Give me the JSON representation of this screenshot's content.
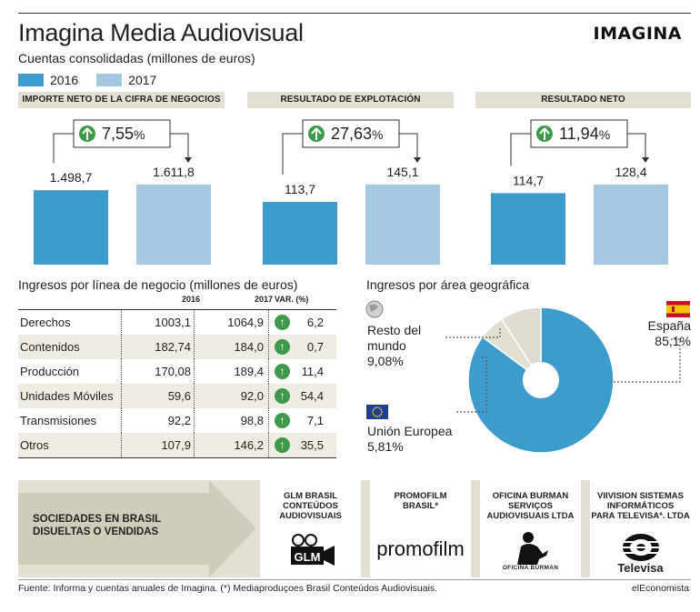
{
  "header": {
    "title": "Imagina Media Audiovisual",
    "subtitle": "Cuentas consolidadas (millones de euros)",
    "brand": "IMAGINA"
  },
  "legend": [
    {
      "label": "2016",
      "color": "#3d9ccb"
    },
    {
      "label": "2017",
      "color": "#a4c8df"
    }
  ],
  "chart_data": [
    {
      "type": "bar",
      "title": "IMPORTE NETO DE LA CIFRA DE NEGOCIOS",
      "categories": [
        "2016",
        "2017"
      ],
      "values": [
        1498.7,
        1611.8
      ],
      "value_labels": [
        "1.498,7",
        "1.611,8"
      ],
      "change_label": "7,55",
      "change_unit": "%"
    },
    {
      "type": "bar",
      "title": "RESULTADO DE EXPLOTACIÓN",
      "categories": [
        "2016",
        "2017"
      ],
      "values": [
        113.7,
        145.1
      ],
      "value_labels": [
        "113,7",
        "145,1"
      ],
      "change_label": "27,63",
      "change_unit": "%"
    },
    {
      "type": "bar",
      "title": "RESULTADO NETO",
      "categories": [
        "2016",
        "2017"
      ],
      "values": [
        114.7,
        128.4
      ],
      "value_labels": [
        "114,7",
        "128,4"
      ],
      "change_label": "11,94",
      "change_unit": "%"
    },
    {
      "type": "table",
      "title": "Ingresos por línea de negocio (millones de euros)",
      "columns": [
        "",
        "2016",
        "2017",
        "VAR. (%)"
      ],
      "rows": [
        [
          "Derechos",
          "1003,1",
          "1064,9",
          "6,2"
        ],
        [
          "Contenidos",
          "182,74",
          "184,0",
          "0,7"
        ],
        [
          "Producción",
          "170,08",
          "189,4",
          "11,4"
        ],
        [
          "Unidades Móviles",
          "59,6",
          "92,0",
          "54,4"
        ],
        [
          "Transmisiones",
          "92,2",
          "98,8",
          "7,1"
        ],
        [
          "Otros",
          "107,9",
          "146,2",
          "35,5"
        ]
      ]
    },
    {
      "type": "pie",
      "title": "Ingresos por área geográfica",
      "slices": [
        {
          "label": "España",
          "value": 85.1,
          "value_label": "85,1%",
          "color": "#3d9ccb"
        },
        {
          "label": "Unión Europea",
          "value": 5.81,
          "value_label": "5,81%",
          "color": "#e3e0d3"
        },
        {
          "label": "Resto del mundo",
          "value": 9.08,
          "value_label": "9,08%",
          "color": "#dedbd0"
        }
      ]
    }
  ],
  "geo_labels": {
    "resto_l1": "Resto del",
    "resto_l2": "mundo",
    "ue": "Unión Europea"
  },
  "companies": {
    "band_label_l1": "SOCIEDADES EN BRASIL",
    "band_label_l2": "DISUELTAS O VENDIDAS",
    "items": [
      {
        "name_l1": "GLM BRASIL",
        "name_l2": "CONTEÚDOS",
        "name_l3": "AUDIOVISUAIS",
        "logo_text": "GLM"
      },
      {
        "name_l1": "PROMOFILM",
        "name_l2": "BRASIL*",
        "name_l3": "",
        "logo_text": "promofilm"
      },
      {
        "name_l1": "OFICINA BURMAN",
        "name_l2": "SERVIÇOS",
        "name_l3": "AUDIOVISUAIS LTDA",
        "logo_text": "OFICINA BURMAN"
      },
      {
        "name_l1": "VIIVISION SISTEMAS",
        "name_l2": "INFORMÁTICOS",
        "name_l3": "PARA TELEVISAª. LTDA",
        "logo_text": "Televisa"
      }
    ]
  },
  "footer": {
    "source": "Fuente: Informa y cuentas anuales de Imagina. (*) Mediaproduçoes Brasil Conteúdos Audiovisuais.",
    "credit": "elEconomista"
  },
  "colors": {
    "accent_2016": "#3d9ccb",
    "accent_2017": "#a4c8df",
    "band": "#e3e0d3",
    "arrow_green": "#3e9a4a"
  }
}
